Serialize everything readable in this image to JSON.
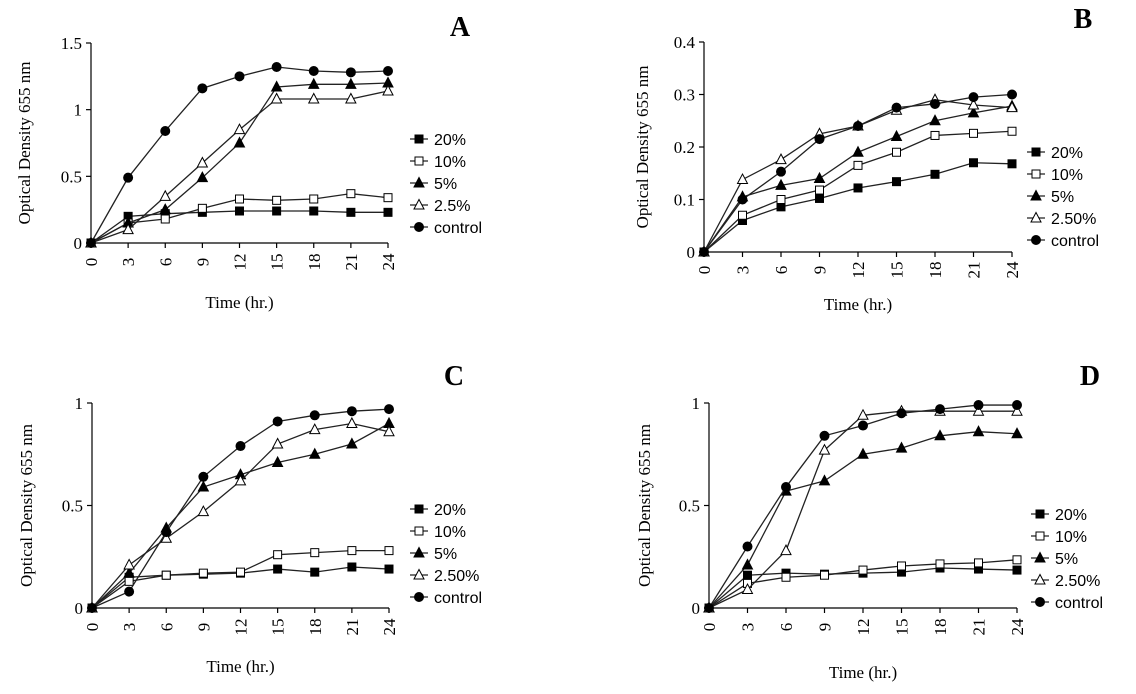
{
  "chart_data": [
    {
      "type": "line",
      "panel_label": "A",
      "xlabel": "Time (hr.)",
      "ylabel": "Optical Density 655 nm",
      "x": [
        0,
        3,
        6,
        9,
        12,
        15,
        18,
        21,
        24
      ],
      "xticks": [
        "0",
        "3",
        "6",
        "9",
        "12",
        "15",
        "18",
        "21",
        "24"
      ],
      "ylim": [
        0,
        1.5
      ],
      "yticks": [
        {
          "v": 0,
          "t": "0"
        },
        {
          "v": 0.5,
          "t": "0.5"
        },
        {
          "v": 1,
          "t": "1"
        },
        {
          "v": 1.5,
          "t": "1.5"
        }
      ],
      "grid": false,
      "legend_position": "right",
      "series": [
        {
          "name": "20%",
          "marker": "square-filled",
          "values": [
            0,
            0.2,
            0.22,
            0.23,
            0.24,
            0.24,
            0.24,
            0.23,
            0.23
          ]
        },
        {
          "name": "10%",
          "marker": "square-open",
          "values": [
            0,
            0.15,
            0.18,
            0.26,
            0.33,
            0.32,
            0.33,
            0.37,
            0.34
          ]
        },
        {
          "name": "5%",
          "marker": "triangle-filled",
          "values": [
            0,
            0.15,
            0.25,
            0.49,
            0.75,
            1.17,
            1.19,
            1.19,
            1.2
          ]
        },
        {
          "name": "2.5%",
          "marker": "triangle-open",
          "values": [
            0,
            0.1,
            0.35,
            0.6,
            0.85,
            1.08,
            1.08,
            1.08,
            1.14
          ]
        },
        {
          "name": "control",
          "marker": "circle-filled",
          "values": [
            0,
            0.49,
            0.84,
            1.16,
            1.25,
            1.32,
            1.29,
            1.28,
            1.29
          ]
        }
      ]
    },
    {
      "type": "line",
      "panel_label": "B",
      "xlabel": "Time (hr.)",
      "ylabel": "Optical Density 655 nm",
      "x": [
        0,
        3,
        6,
        9,
        12,
        15,
        18,
        21,
        24
      ],
      "xticks": [
        "0",
        "3",
        "6",
        "9",
        "12",
        "15",
        "18",
        "21",
        "24"
      ],
      "ylim": [
        0,
        0.4
      ],
      "yticks": [
        {
          "v": 0,
          "t": "0"
        },
        {
          "v": 0.1,
          "t": "0.1"
        },
        {
          "v": 0.2,
          "t": "0.2"
        },
        {
          "v": 0.3,
          "t": "0.3"
        },
        {
          "v": 0.4,
          "t": "0.4"
        }
      ],
      "grid": false,
      "legend_position": "right",
      "series": [
        {
          "name": "20%",
          "marker": "square-filled",
          "values": [
            0,
            0.06,
            0.086,
            0.102,
            0.122,
            0.134,
            0.148,
            0.17,
            0.168
          ]
        },
        {
          "name": "10%",
          "marker": "square-open",
          "values": [
            0,
            0.07,
            0.1,
            0.118,
            0.165,
            0.19,
            0.222,
            0.226,
            0.23
          ]
        },
        {
          "name": "5%",
          "marker": "triangle-filled",
          "values": [
            0,
            0.105,
            0.127,
            0.14,
            0.19,
            0.22,
            0.25,
            0.265,
            0.278
          ]
        },
        {
          "name": "2.50%",
          "marker": "triangle-open",
          "values": [
            0,
            0.138,
            0.176,
            0.225,
            0.24,
            0.27,
            0.29,
            0.28,
            0.275
          ]
        },
        {
          "name": "control",
          "marker": "circle-filled",
          "values": [
            0,
            0.1,
            0.153,
            0.215,
            0.24,
            0.275,
            0.282,
            0.295,
            0.3
          ]
        }
      ]
    },
    {
      "type": "line",
      "panel_label": "C",
      "xlabel": "Time (hr.)",
      "ylabel": "Optical Density 655 nm",
      "x": [
        0,
        3,
        6,
        9,
        12,
        15,
        18,
        21,
        24
      ],
      "xticks": [
        "0",
        "3",
        "6",
        "9",
        "12",
        "15",
        "18",
        "21",
        "24"
      ],
      "ylim": [
        0,
        1
      ],
      "yticks": [
        {
          "v": 0,
          "t": "0"
        },
        {
          "v": 0.5,
          "t": "0.5"
        },
        {
          "v": 1,
          "t": "1"
        }
      ],
      "grid": false,
      "legend_position": "right",
      "series": [
        {
          "name": "20%",
          "marker": "square-filled",
          "values": [
            0,
            0.15,
            0.16,
            0.165,
            0.17,
            0.19,
            0.175,
            0.2,
            0.19
          ]
        },
        {
          "name": "10%",
          "marker": "square-open",
          "values": [
            0,
            0.13,
            0.16,
            0.17,
            0.175,
            0.26,
            0.27,
            0.28,
            0.28
          ]
        },
        {
          "name": "5%",
          "marker": "triangle-filled",
          "values": [
            0,
            0.17,
            0.39,
            0.59,
            0.65,
            0.71,
            0.75,
            0.8,
            0.9
          ]
        },
        {
          "name": "2.50%",
          "marker": "triangle-open",
          "values": [
            0,
            0.21,
            0.34,
            0.47,
            0.62,
            0.8,
            0.87,
            0.9,
            0.86
          ]
        },
        {
          "name": "control",
          "marker": "circle-filled",
          "values": [
            0,
            0.08,
            0.37,
            0.64,
            0.79,
            0.91,
            0.94,
            0.96,
            0.97
          ]
        }
      ]
    },
    {
      "type": "line",
      "panel_label": "D",
      "xlabel": "Time (hr.)",
      "ylabel": "Optical Density 655 nm",
      "x": [
        0,
        3,
        6,
        9,
        12,
        15,
        18,
        21,
        24
      ],
      "xticks": [
        "0",
        "3",
        "6",
        "9",
        "12",
        "15",
        "18",
        "21",
        "24"
      ],
      "ylim": [
        0,
        1
      ],
      "yticks": [
        {
          "v": 0,
          "t": "0"
        },
        {
          "v": 0.5,
          "t": "0.5"
        },
        {
          "v": 1,
          "t": "1"
        }
      ],
      "grid": false,
      "legend_position": "right",
      "series": [
        {
          "name": "20%",
          "marker": "square-filled",
          "values": [
            0,
            0.16,
            0.17,
            0.165,
            0.17,
            0.175,
            0.195,
            0.19,
            0.185
          ]
        },
        {
          "name": "10%",
          "marker": "square-open",
          "values": [
            0,
            0.12,
            0.15,
            0.16,
            0.185,
            0.205,
            0.215,
            0.22,
            0.235
          ]
        },
        {
          "name": "5%",
          "marker": "triangle-filled",
          "values": [
            0,
            0.21,
            0.57,
            0.62,
            0.75,
            0.78,
            0.84,
            0.86,
            0.85
          ]
        },
        {
          "name": "2.50%",
          "marker": "triangle-open",
          "values": [
            0,
            0.09,
            0.28,
            0.77,
            0.94,
            0.96,
            0.96,
            0.96,
            0.96
          ]
        },
        {
          "name": "control",
          "marker": "circle-filled",
          "values": [
            0,
            0.3,
            0.59,
            0.84,
            0.89,
            0.95,
            0.97,
            0.99,
            0.99
          ]
        }
      ]
    }
  ]
}
